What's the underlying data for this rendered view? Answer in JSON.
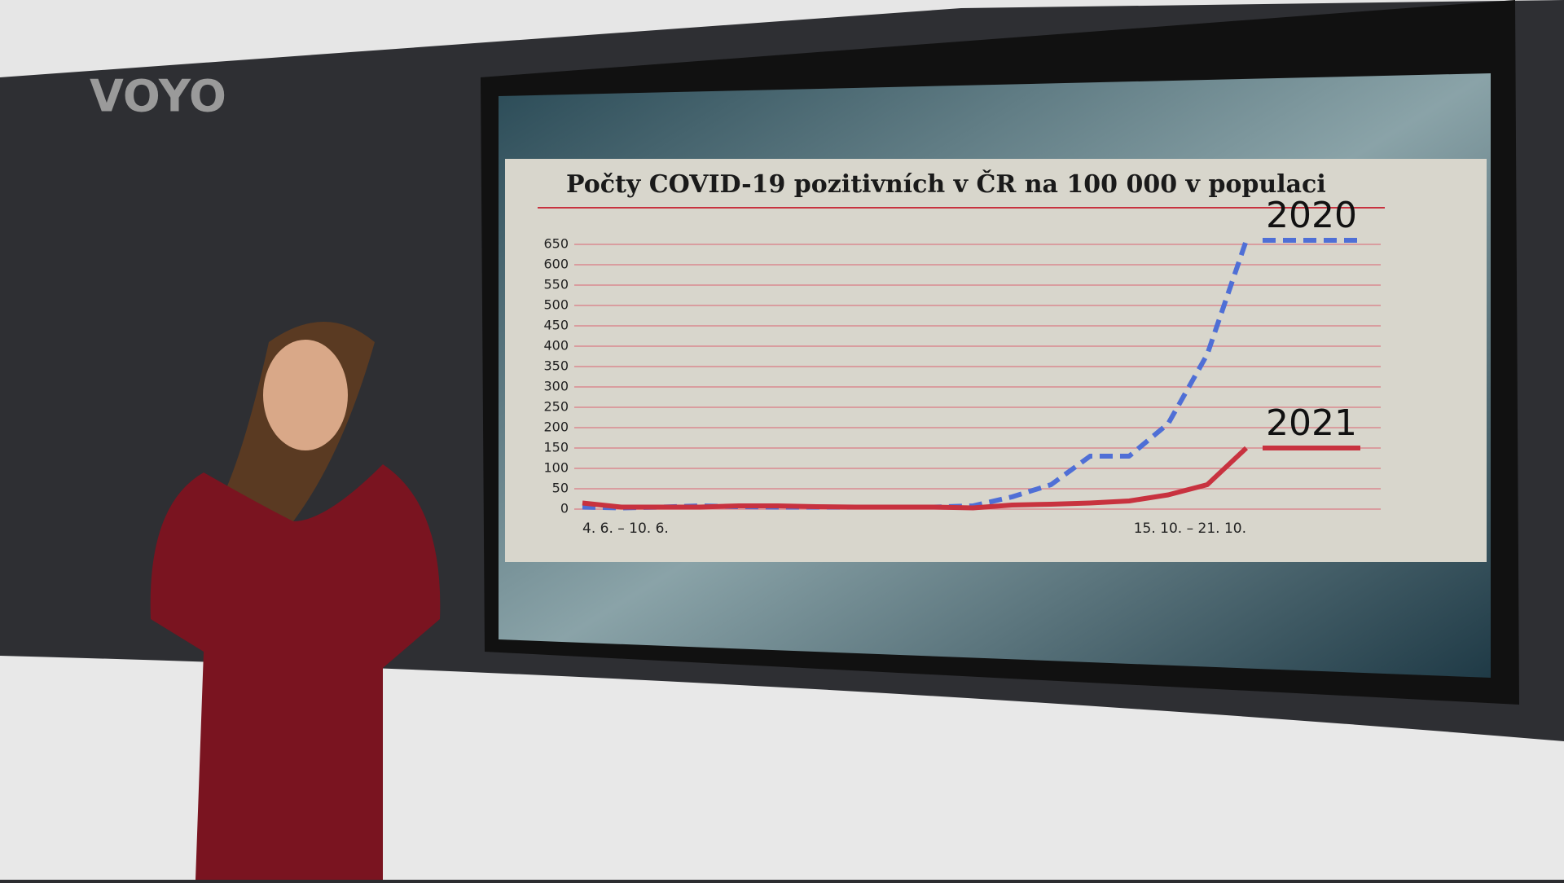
{
  "logo": "VOYO",
  "chart_data": {
    "type": "line",
    "title": "Počty COVID-19 pozitivních v ČR na 100 000 v populaci",
    "categories": [
      "4. 6. – 10. 6.",
      null,
      null,
      null,
      null,
      null,
      null,
      null,
      null,
      null,
      null,
      null,
      null,
      null,
      null,
      null,
      null,
      "15. 10. – 21. 10."
    ],
    "series": [
      {
        "name": "2020",
        "color": "#4f6fd6",
        "dashed": true,
        "values": [
          5,
          3,
          5,
          8,
          6,
          5,
          5,
          5,
          5,
          5,
          8,
          30,
          60,
          130,
          130,
          210,
          380,
          660
        ]
      },
      {
        "name": "2021",
        "color": "#c8323f",
        "dashed": false,
        "values": [
          15,
          5,
          5,
          5,
          8,
          8,
          6,
          5,
          5,
          5,
          3,
          10,
          12,
          15,
          20,
          35,
          60,
          150
        ]
      }
    ],
    "ylim": [
      0,
      700
    ],
    "yticks": [
      0,
      50,
      100,
      150,
      200,
      250,
      300,
      350,
      400,
      450,
      500,
      550,
      600,
      650
    ],
    "grid": true,
    "legend": "right"
  }
}
